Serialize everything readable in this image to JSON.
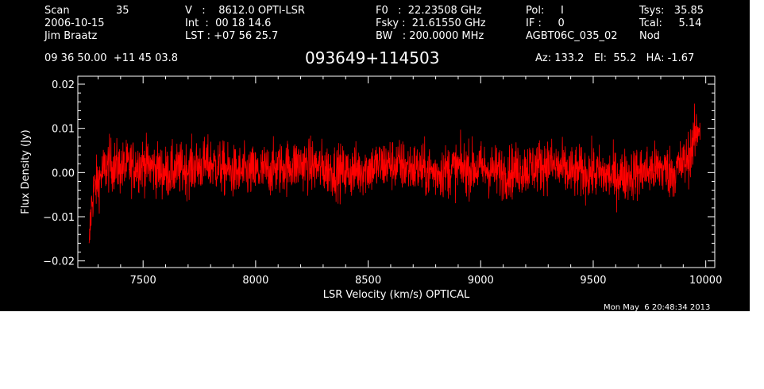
{
  "header": {
    "row1": [
      "Scan",
      "35",
      "V   :    8612.0 OPTI-LSR",
      "F0   :  22.23508 GHz",
      "Pol:     I",
      "Tsys:   35.85"
    ],
    "row2": [
      "2006-10-15",
      "Int  :  00 18 14.6",
      "Fsky :  21.61550 GHz",
      "IF :     0",
      "Tcal:     5.14"
    ],
    "row3": [
      "Jim Braatz",
      "LST : +07 56 25.7",
      "BW   : 200.0000 MHz",
      "AGBT06C_035_02",
      "Nod"
    ],
    "coords": "09 36 50.00  +11 45 03.8",
    "source": "093649+114503",
    "pointing": "Az: 133.2   El:  55.2   HA: -1.67",
    "timestamp": "Mon May  6 20:48:34 2013"
  },
  "colors": {
    "background": "#000000",
    "axes": "#ffffff",
    "trace": "#ff0000",
    "page": "#ffffff"
  },
  "chart_data": {
    "type": "line",
    "title": "",
    "xlabel": "LSR Velocity (km/s) OPTICAL",
    "ylabel": "Flux Density (Jy)",
    "xlim": [
      7210,
      10040
    ],
    "ylim": [
      -0.0215,
      0.0218
    ],
    "xticks": [
      7500,
      8000,
      8500,
      9000,
      9500,
      10000
    ],
    "xtick_labels": [
      "7500",
      "8000",
      "8500",
      "9000",
      "9500",
      "10000"
    ],
    "yticks": [
      -0.02,
      -0.01,
      0.0,
      0.01,
      0.02
    ],
    "ytick_labels": [
      "−0.02",
      "−0.01",
      "0.00",
      "0.01",
      "0.02"
    ],
    "series": [
      {
        "x": [
          7260,
          7265,
          7270,
          7275,
          7280,
          7290,
          7300,
          7320,
          7350,
          7400,
          7500,
          7600,
          7700,
          7800,
          7900,
          8000,
          8100,
          8200,
          8300,
          8400,
          8500,
          8600,
          8700,
          8800,
          8900,
          9000,
          9100,
          9200,
          9300,
          9400,
          9500,
          9600,
          9700,
          9800,
          9850,
          9900,
          9920,
          9940,
          9960,
          9970,
          9975
        ],
        "y": [
          -0.019,
          -0.012,
          -0.008,
          -0.006,
          -0.004,
          -0.003,
          -0.002,
          0.0,
          0.002,
          0.001,
          0.002,
          0.0,
          0.001,
          0.002,
          0.0,
          0.0,
          0.001,
          0.002,
          0.001,
          0.0,
          0.001,
          0.002,
          0.001,
          0.0,
          0.001,
          0.001,
          0.0,
          0.001,
          0.002,
          0.0,
          0.0,
          -0.001,
          0.0,
          0.001,
          0.0,
          0.002,
          0.003,
          0.006,
          0.009,
          0.011,
          0.01
        ]
      }
    ]
  }
}
